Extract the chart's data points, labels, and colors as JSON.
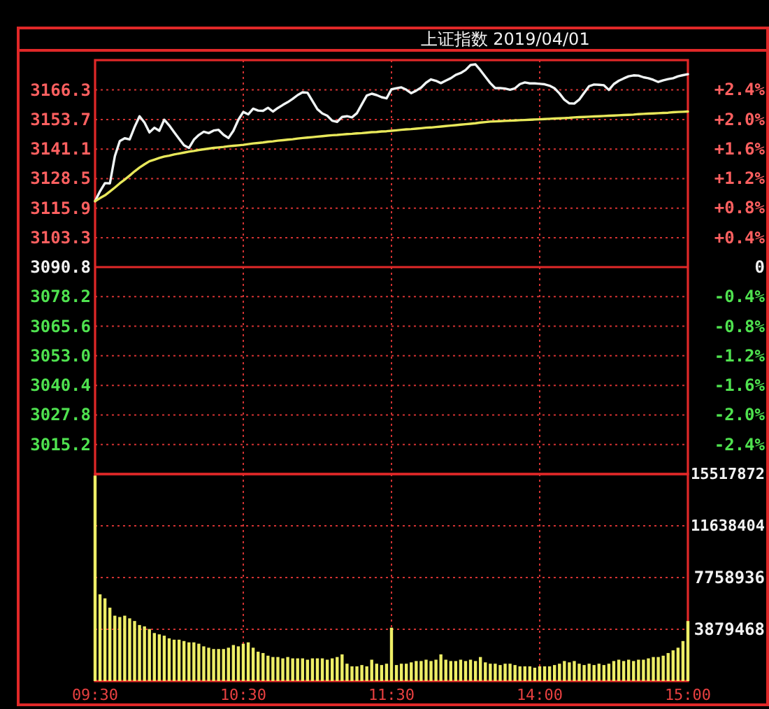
{
  "chart_data": [
    {
      "type": "line",
      "title": "上证指数 2019/04/01",
      "categories": [
        null,
        null,
        null,
        null,
        null,
        null,
        null,
        null,
        null,
        null,
        null,
        null,
        null,
        null,
        null,
        null,
        null,
        null,
        null,
        null,
        null,
        null,
        null,
        null,
        null,
        null,
        null,
        null,
        null,
        null,
        null,
        null,
        null,
        null,
        null,
        null,
        null,
        null,
        null,
        null,
        null,
        null,
        null,
        null,
        null,
        null,
        null,
        null,
        null,
        null,
        null,
        null,
        null,
        null,
        null,
        null,
        null,
        null,
        null,
        null,
        null,
        null,
        null,
        null,
        null,
        null,
        null,
        null,
        null,
        null,
        null,
        null,
        null,
        null,
        null,
        null,
        null,
        null,
        null,
        null,
        null,
        null,
        null,
        null,
        null,
        null,
        null,
        null,
        null,
        null,
        null,
        null,
        null,
        null,
        null,
        null,
        null,
        null,
        null,
        null,
        null,
        null,
        null,
        null,
        null,
        null,
        null,
        null,
        null,
        null,
        null,
        null,
        null,
        null,
        null,
        null,
        null,
        null,
        null,
        null,
        null
      ],
      "ylim": [
        3002.6,
        3179.0
      ],
      "yticks": [
        3166.3,
        3153.7,
        3141.1,
        3128.5,
        3115.9,
        3103.3,
        3090.8,
        3078.2,
        3065.6,
        {
          "value": 3053.0,
          "label": "3053.0"
        },
        3040.4,
        3027.8,
        3015.2
      ],
      "y2lim": [
        -2.8,
        2.8
      ],
      "y2ticks": [
        {
          "value": 2.4,
          "label": "+2.4%"
        },
        {
          "value": 2.0,
          "label": "+2.0%"
        },
        {
          "value": 1.6,
          "label": "+1.6%"
        },
        {
          "value": 1.2,
          "label": "+1.2%"
        },
        {
          "value": 0.8,
          "label": "+0.8%"
        },
        {
          "value": 0.4,
          "label": "+0.4%"
        },
        0,
        {
          "value": -0.4,
          "label": "-0.4%"
        },
        {
          "value": -0.8,
          "label": "-0.8%"
        },
        {
          "value": -1.2,
          "label": "-1.2%"
        },
        {
          "value": -1.6,
          "label": "-1.6%"
        },
        {
          "value": -2.0,
          "label": "-2.0%"
        },
        {
          "value": -2.4,
          "label": "-2.4%"
        }
      ],
      "grid": true,
      "ref_lines": [
        {
          "axis": "y",
          "value": 3090.8,
          "color": "#e02828",
          "line_style": "solid"
        }
      ],
      "series": [
        {
          "color": "#f0f4f4",
          "values": [
            3118.9,
            3123.1,
            3126.6,
            3126.5,
            3138.0,
            3144.5,
            3145.7,
            3145.2,
            3150.5,
            3155.1,
            3152.4,
            3148.2,
            3150.2,
            3148.9,
            3153.6,
            3151.2,
            3148.3,
            3145.5,
            3142.7,
            3141.6,
            3145.1,
            3147.1,
            3148.5,
            3147.9,
            3149.0,
            3149.3,
            3147.2,
            3145.8,
            3148.9,
            3153.6,
            3156.9,
            3155.9,
            3158.3,
            3157.5,
            3157.4,
            3158.7,
            3157.1,
            3158.6,
            3159.9,
            3161.1,
            3162.5,
            3164.1,
            3165.3,
            3165.1,
            3161.6,
            3158.1,
            3156.3,
            3155.3,
            3153.2,
            3152.7,
            3154.8,
            3155.1,
            3154.6,
            3156.4,
            3160.2,
            3163.9,
            3164.7,
            3164.1,
            3163.2,
            3162.7,
            3166.6,
            3167.0,
            3167.4,
            3166.4,
            3164.9,
            3166.0,
            3167.3,
            3169.4,
            3170.8,
            3170.2,
            3169.2,
            3170.3,
            3171.3,
            3172.7,
            3173.5,
            3174.8,
            3176.9,
            3177.2,
            3174.7,
            3171.9,
            3169.2,
            3167.1,
            3167.1,
            3166.9,
            3166.4,
            3167.0,
            3168.8,
            3169.5,
            3169.1,
            3169.1,
            3168.9,
            3168.7,
            3168.1,
            3167.0,
            3164.8,
            3162.1,
            3160.6,
            3160.5,
            3162.2,
            3165.1,
            3167.9,
            3168.6,
            3168.5,
            3168.3,
            3166.3,
            3168.8,
            3170.2,
            3171.2,
            3172.1,
            3172.5,
            3172.4,
            3171.7,
            3171.3,
            3170.6,
            3169.7,
            3170.4,
            3170.9,
            3171.3,
            3172.1,
            3172.6,
            3173.0
          ]
        },
        {
          "color": "#e8e85a",
          "values": [
            3118.9,
            3120.2,
            3121.4,
            3123.0,
            3124.7,
            3126.5,
            3128.1,
            3129.8,
            3131.6,
            3133.2,
            3134.6,
            3135.9,
            3136.6,
            3137.3,
            3137.9,
            3138.3,
            3138.8,
            3139.2,
            3139.6,
            3140.0,
            3140.3,
            3140.7,
            3141.0,
            3141.3,
            3141.6,
            3141.8,
            3142.0,
            3142.3,
            3142.5,
            3142.7,
            3142.9,
            3143.2,
            3143.5,
            3143.7,
            3143.9,
            3144.2,
            3144.4,
            3144.7,
            3144.9,
            3145.1,
            3145.3,
            3145.6,
            3145.8,
            3146.0,
            3146.2,
            3146.4,
            3146.6,
            3146.8,
            3147.0,
            3147.1,
            3147.3,
            3147.5,
            3147.6,
            3147.8,
            3147.9,
            3148.1,
            3148.3,
            3148.4,
            3148.6,
            3148.7,
            3148.9,
            3149.1,
            3149.3,
            3149.5,
            3149.6,
            3149.8,
            3150.0,
            3150.2,
            3150.3,
            3150.5,
            3150.7,
            3150.9,
            3151.1,
            3151.3,
            3151.5,
            3151.7,
            3151.9,
            3152.1,
            3152.4,
            3152.6,
            3152.8,
            3152.9,
            3153.0,
            3153.1,
            3153.2,
            3153.3,
            3153.4,
            3153.5,
            3153.6,
            3153.7,
            3153.8,
            3153.9,
            3154.0,
            3154.1,
            3154.2,
            3154.3,
            3154.4,
            3154.6,
            3154.7,
            3154.8,
            3154.9,
            3155.0,
            3155.1,
            3155.2,
            3155.3,
            3155.4,
            3155.5,
            3155.6,
            3155.7,
            3155.8,
            3156.0,
            3156.1,
            3156.2,
            3156.3,
            3156.4,
            3156.5,
            3156.6,
            3156.8,
            3156.9,
            3157.0,
            3157.1
          ]
        }
      ]
    },
    {
      "type": "bar",
      "categories": [
        "09:30",
        null,
        null,
        null,
        null,
        null,
        null,
        null,
        null,
        null,
        null,
        null,
        null,
        null,
        null,
        null,
        null,
        null,
        null,
        null,
        null,
        null,
        null,
        null,
        null,
        null,
        null,
        null,
        null,
        null,
        "10:30",
        null,
        null,
        null,
        null,
        null,
        null,
        null,
        null,
        null,
        null,
        null,
        null,
        null,
        null,
        null,
        null,
        null,
        null,
        null,
        null,
        null,
        null,
        null,
        null,
        null,
        null,
        null,
        null,
        null,
        "11:30",
        null,
        null,
        null,
        null,
        null,
        null,
        null,
        null,
        null,
        null,
        null,
        null,
        null,
        null,
        null,
        null,
        null,
        null,
        null,
        null,
        null,
        null,
        null,
        null,
        null,
        null,
        null,
        null,
        null,
        "14:00",
        null,
        null,
        null,
        null,
        null,
        null,
        null,
        null,
        null,
        null,
        null,
        null,
        null,
        null,
        null,
        null,
        null,
        null,
        null,
        null,
        null,
        null,
        null,
        null,
        null,
        null,
        null,
        null,
        null,
        "15:00"
      ],
      "y2lim": [
        0,
        15517872
      ],
      "y2ticks": [
        15517872,
        11638404,
        7758936,
        3879468
      ],
      "grid": true,
      "series": [
        {
          "axis": "y2",
          "color": "#eeee66",
          "values": [
            15400000,
            6500000,
            6200000,
            5500000,
            4900000,
            4800000,
            4900000,
            4700000,
            4500000,
            4200000,
            4100000,
            3900000,
            3600000,
            3500000,
            3400000,
            3200000,
            3100000,
            3100000,
            3000000,
            2900000,
            2900000,
            2800000,
            2600000,
            2500000,
            2400000,
            2400000,
            2400000,
            2500000,
            2700000,
            2600000,
            2800000,
            2900000,
            2500000,
            2200000,
            2100000,
            1900000,
            1800000,
            1800000,
            1700000,
            1800000,
            1700000,
            1700000,
            1700000,
            1600000,
            1700000,
            1700000,
            1700000,
            1600000,
            1700000,
            1800000,
            2000000,
            1300000,
            1100000,
            1100000,
            1200000,
            1100000,
            1600000,
            1300000,
            1200000,
            1300000,
            4000000,
            1200000,
            1300000,
            1300000,
            1400000,
            1500000,
            1500000,
            1600000,
            1500000,
            1600000,
            2000000,
            1600000,
            1500000,
            1500000,
            1600000,
            1500000,
            1600000,
            1500000,
            1800000,
            1400000,
            1300000,
            1300000,
            1200000,
            1300000,
            1300000,
            1200000,
            1100000,
            1100000,
            1100000,
            1000000,
            1100000,
            1100000,
            1100000,
            1200000,
            1300000,
            1500000,
            1400000,
            1500000,
            1300000,
            1200000,
            1300000,
            1200000,
            1300000,
            1200000,
            1300000,
            1500000,
            1600000,
            1500000,
            1600000,
            1500000,
            1600000,
            1600000,
            1700000,
            1800000,
            1800000,
            1900000,
            2100000,
            2300000,
            2500000,
            3000000,
            4500000
          ]
        }
      ]
    }
  ]
}
